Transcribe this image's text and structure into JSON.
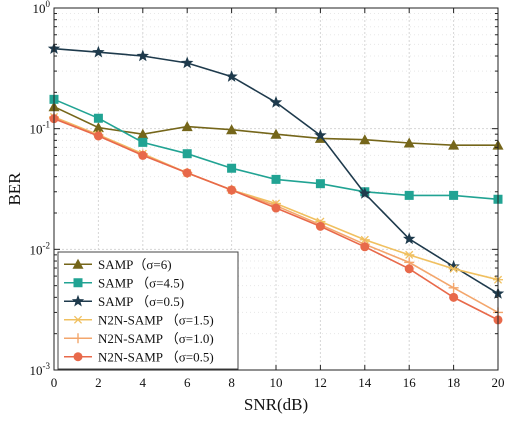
{
  "chart_data": {
    "type": "line",
    "xlabel": "SNR(dB)",
    "ylabel": "BER",
    "x": [
      0,
      2,
      4,
      6,
      8,
      10,
      12,
      14,
      16,
      18,
      20
    ],
    "xlim": [
      0,
      20
    ],
    "ylim": [
      0.001,
      1
    ],
    "yscale": "log",
    "xticks": [
      "0",
      "2",
      "4",
      "6",
      "8",
      "10",
      "12",
      "14",
      "16",
      "18",
      "20"
    ],
    "yticks": [
      {
        "value": 1,
        "base": "10",
        "exp": "0"
      },
      {
        "value": 0.1,
        "base": "10",
        "exp": "-1"
      },
      {
        "value": 0.01,
        "base": "10",
        "exp": "-2"
      },
      {
        "value": 0.001,
        "base": "10",
        "exp": "-3"
      }
    ],
    "grid": true,
    "legend_position": "bottom-left",
    "series": [
      {
        "name": "SAMP（σ=6)",
        "color": "#75661a",
        "marker": "triangle",
        "values": [
          0.152,
          0.102,
          0.09,
          0.104,
          0.098,
          0.09,
          0.083,
          0.081,
          0.076,
          0.073,
          0.073
        ]
      },
      {
        "name": "SAMP （σ=4.5)",
        "color": "#21a393",
        "marker": "square",
        "values": [
          0.175,
          0.122,
          0.077,
          0.062,
          0.047,
          0.038,
          0.035,
          0.03,
          0.028,
          0.028,
          0.026
        ]
      },
      {
        "name": "SAMP （σ=0.5)",
        "color": "#1e3a4c",
        "marker": "star",
        "values": [
          0.46,
          0.43,
          0.4,
          0.35,
          0.27,
          0.165,
          0.088,
          0.029,
          0.0122,
          0.0072,
          0.0043
        ]
      },
      {
        "name": "N2N-SAMP （σ=1.5)",
        "color": "#f0c060",
        "marker": "asterisk",
        "values": [
          0.125,
          0.089,
          0.062,
          0.043,
          0.031,
          0.024,
          0.017,
          0.012,
          0.009,
          0.0069,
          0.0056
        ]
      },
      {
        "name": "N2N-SAMP （σ=1.0)",
        "color": "#f3a66c",
        "marker": "plus",
        "values": [
          0.123,
          0.088,
          0.061,
          0.043,
          0.031,
          0.023,
          0.016,
          0.011,
          0.0078,
          0.0048,
          0.003
        ]
      },
      {
        "name": "N2N-SAMP （σ=0.5)",
        "color": "#e8694a",
        "marker": "circle",
        "values": [
          0.121,
          0.087,
          0.06,
          0.043,
          0.031,
          0.022,
          0.0155,
          0.0105,
          0.0069,
          0.004,
          0.0026
        ]
      }
    ]
  }
}
